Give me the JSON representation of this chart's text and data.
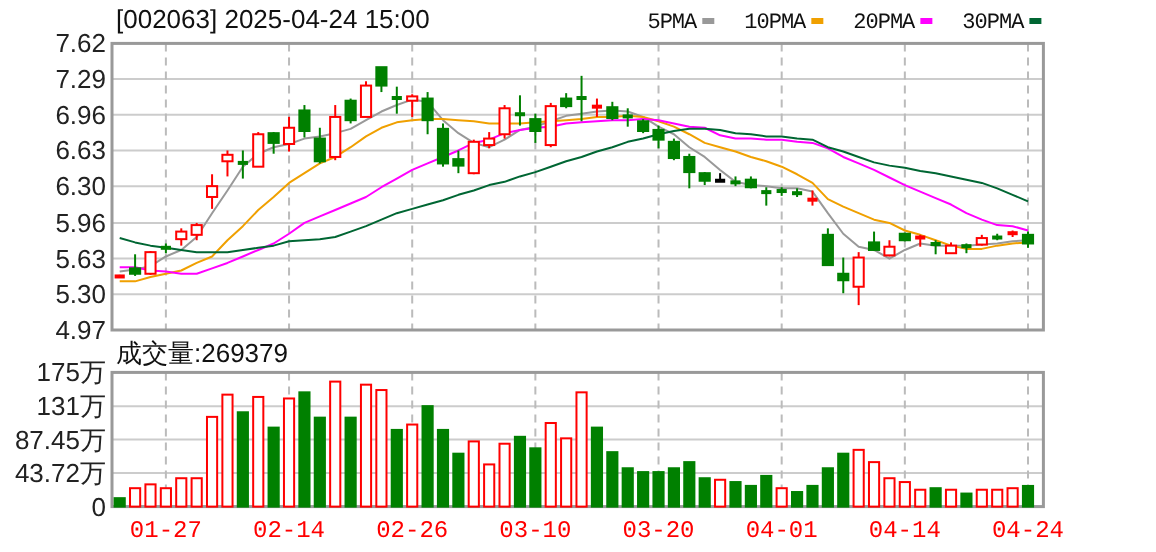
{
  "chart_data": [
    {
      "type": "candlestick",
      "title": "[002063] 2025-04-24 15:00",
      "categories": [
        null,
        null,
        null,
        null,
        null,
        null,
        null,
        null,
        null,
        null,
        null,
        null,
        null,
        null,
        null,
        null,
        null,
        null,
        null,
        null,
        null,
        null,
        null,
        null,
        null,
        null,
        null,
        null,
        null,
        null,
        null,
        null,
        null,
        null,
        null,
        null,
        null,
        null,
        null,
        null,
        null,
        null,
        null,
        null,
        null,
        null,
        null,
        null,
        null,
        null,
        null,
        null,
        null,
        null,
        null,
        null,
        null,
        null,
        null,
        null
      ],
      "ohlc": [
        [
          5.46,
          5.48,
          5.46,
          5.47
        ],
        [
          5.54,
          5.67,
          5.47,
          5.49
        ],
        [
          5.49,
          5.7,
          5.48,
          5.69
        ],
        [
          5.74,
          5.77,
          5.68,
          5.72
        ],
        [
          5.81,
          5.91,
          5.75,
          5.88
        ],
        [
          5.85,
          5.96,
          5.8,
          5.94
        ],
        [
          6.2,
          6.41,
          6.09,
          6.3
        ],
        [
          6.53,
          6.63,
          6.39,
          6.59
        ],
        [
          6.52,
          6.63,
          6.37,
          6.51
        ],
        [
          6.48,
          6.8,
          6.48,
          6.78
        ],
        [
          6.79,
          6.8,
          6.6,
          6.7
        ],
        [
          6.69,
          6.94,
          6.62,
          6.84
        ],
        [
          7.0,
          7.05,
          6.75,
          6.81
        ],
        [
          6.74,
          6.84,
          6.51,
          6.53
        ],
        [
          6.57,
          7.05,
          6.54,
          6.94
        ],
        [
          7.09,
          7.11,
          6.88,
          6.91
        ],
        [
          6.94,
          7.27,
          6.94,
          7.23
        ],
        [
          7.4,
          7.4,
          7.17,
          7.23
        ],
        [
          7.13,
          7.22,
          6.97,
          7.1
        ],
        [
          7.09,
          7.15,
          6.94,
          7.13
        ],
        [
          7.11,
          7.17,
          6.78,
          6.91
        ],
        [
          6.83,
          6.88,
          6.48,
          6.51
        ],
        [
          6.55,
          6.63,
          6.42,
          6.49
        ],
        [
          6.42,
          6.73,
          6.41,
          6.71
        ],
        [
          6.68,
          6.8,
          6.65,
          6.74
        ],
        [
          6.78,
          7.05,
          6.74,
          7.02
        ],
        [
          6.97,
          7.14,
          6.86,
          6.96
        ],
        [
          6.92,
          6.97,
          6.7,
          6.81
        ],
        [
          6.68,
          7.07,
          6.66,
          7.04
        ],
        [
          7.11,
          7.16,
          7.02,
          7.04
        ],
        [
          7.12,
          7.32,
          6.9,
          7.11
        ],
        [
          7.03,
          7.11,
          6.94,
          7.04
        ],
        [
          7.03,
          7.08,
          6.91,
          6.93
        ],
        [
          6.95,
          7.02,
          6.85,
          6.94
        ],
        [
          6.9,
          6.92,
          6.79,
          6.81
        ],
        [
          6.82,
          6.86,
          6.65,
          6.73
        ],
        [
          6.71,
          6.74,
          6.54,
          6.56
        ],
        [
          6.57,
          6.6,
          6.28,
          6.43
        ],
        [
          6.42,
          6.43,
          6.31,
          6.35
        ],
        [
          6.35,
          6.42,
          6.35,
          6.35
        ],
        [
          6.34,
          6.39,
          6.3,
          6.33
        ],
        [
          6.36,
          6.39,
          6.28,
          6.29
        ],
        [
          6.25,
          6.29,
          6.12,
          6.24
        ],
        [
          6.26,
          6.29,
          6.21,
          6.25
        ],
        [
          6.24,
          6.28,
          6.2,
          6.23
        ],
        [
          6.17,
          6.26,
          6.12,
          6.18
        ],
        [
          5.85,
          5.91,
          5.57,
          5.57
        ],
        [
          5.49,
          5.64,
          5.31,
          5.43
        ],
        [
          5.37,
          5.69,
          5.2,
          5.64
        ],
        [
          5.78,
          5.88,
          5.7,
          5.71
        ],
        [
          5.66,
          5.8,
          5.65,
          5.74
        ],
        [
          5.86,
          5.87,
          5.79,
          5.8
        ],
        [
          5.82,
          5.85,
          5.74,
          5.83
        ],
        [
          5.77,
          5.8,
          5.67,
          5.76
        ],
        [
          5.68,
          5.78,
          5.68,
          5.75
        ],
        [
          5.75,
          5.77,
          5.68,
          5.74
        ],
        [
          5.76,
          5.85,
          5.75,
          5.82
        ],
        [
          5.83,
          5.86,
          5.8,
          5.82
        ],
        [
          5.86,
          5.89,
          5.83,
          5.87
        ],
        [
          5.85,
          5.88,
          5.73,
          5.77
        ]
      ],
      "colors": [
        "#ff0000",
        "#008000",
        "#ff0000",
        "#008000",
        "#ff0000",
        "#ff0000",
        "#ff0000",
        "#ff0000",
        "#008000",
        "#ff0000",
        "#008000",
        "#ff0000",
        "#008000",
        "#008000",
        "#ff0000",
        "#008000",
        "#ff0000",
        "#008000",
        "#008000",
        "#ff0000",
        "#008000",
        "#008000",
        "#008000",
        "#ff0000",
        "#ff0000",
        "#ff0000",
        "#008000",
        "#008000",
        "#ff0000",
        "#008000",
        "#008000",
        "#ff0000",
        "#008000",
        "#008000",
        "#008000",
        "#008000",
        "#008000",
        "#008000",
        "#008000",
        "#000000",
        "#008000",
        "#008000",
        "#008000",
        "#008000",
        "#008000",
        "#ff0000",
        "#008000",
        "#008000",
        "#ff0000",
        "#008000",
        "#ff0000",
        "#008000",
        "#ff0000",
        "#008000",
        "#ff0000",
        "#008000",
        "#ff0000",
        "#008000",
        "#ff0000",
        "#008000"
      ],
      "series": [
        {
          "name": "5PMA",
          "type": "line",
          "color": "#999999",
          "values": [
            5.51,
            5.53,
            5.56,
            5.65,
            5.71,
            5.83,
            6.05,
            6.26,
            6.48,
            6.6,
            6.66,
            6.69,
            6.74,
            6.76,
            6.79,
            6.83,
            6.91,
            6.99,
            7.05,
            7.1,
            7.08,
            6.91,
            6.79,
            6.7,
            6.66,
            6.73,
            6.82,
            6.85,
            6.9,
            6.95,
            6.97,
            6.99,
            7.0,
            6.99,
            6.94,
            6.85,
            6.78,
            6.66,
            6.57,
            6.45,
            6.34,
            6.31,
            6.3,
            6.28,
            6.28,
            6.25,
            6.05,
            5.86,
            5.74,
            5.71,
            5.63,
            5.71,
            5.77,
            5.75,
            5.75,
            5.75,
            5.76,
            5.77,
            5.79,
            5.8
          ]
        },
        {
          "name": "10PMA",
          "type": "line",
          "color": "#f0a000",
          "values": [
            5.42,
            5.42,
            5.46,
            5.49,
            5.52,
            5.59,
            5.65,
            5.8,
            5.93,
            6.08,
            6.2,
            6.33,
            6.42,
            6.51,
            6.57,
            6.66,
            6.76,
            6.84,
            6.89,
            6.91,
            6.92,
            6.92,
            6.91,
            6.9,
            6.88,
            6.88,
            6.88,
            6.89,
            6.9,
            6.91,
            6.92,
            6.94,
            6.94,
            6.95,
            6.94,
            6.9,
            6.85,
            6.78,
            6.7,
            6.66,
            6.62,
            6.57,
            6.53,
            6.48,
            6.41,
            6.33,
            6.18,
            6.11,
            6.05,
            5.99,
            5.96,
            5.89,
            5.85,
            5.8,
            5.75,
            5.72,
            5.72,
            5.75,
            5.77,
            5.78
          ]
        },
        {
          "name": "20PMA",
          "type": "line",
          "color": "#ff00ff",
          "values": [
            5.55,
            5.55,
            5.52,
            5.51,
            5.49,
            5.49,
            5.54,
            5.59,
            5.65,
            5.71,
            5.77,
            5.86,
            5.96,
            6.02,
            6.08,
            6.14,
            6.2,
            6.29,
            6.37,
            6.45,
            6.51,
            6.57,
            6.63,
            6.7,
            6.73,
            6.79,
            6.82,
            6.84,
            6.85,
            6.88,
            6.89,
            6.9,
            6.91,
            6.91,
            6.92,
            6.91,
            6.88,
            6.85,
            6.84,
            6.77,
            6.74,
            6.74,
            6.73,
            6.73,
            6.71,
            6.7,
            6.65,
            6.57,
            6.51,
            6.45,
            6.38,
            6.31,
            6.25,
            6.19,
            6.13,
            6.05,
            5.99,
            5.94,
            5.93,
            5.89
          ]
        },
        {
          "name": "30PMA",
          "type": "line",
          "color": "#006633",
          "values": [
            5.82,
            5.78,
            5.75,
            5.73,
            5.71,
            5.69,
            5.69,
            5.69,
            5.71,
            5.73,
            5.75,
            5.79,
            5.8,
            5.81,
            5.83,
            5.88,
            5.93,
            5.99,
            6.05,
            6.09,
            6.13,
            6.17,
            6.22,
            6.26,
            6.31,
            6.34,
            6.39,
            6.43,
            6.48,
            6.53,
            6.57,
            6.62,
            6.66,
            6.71,
            6.74,
            6.78,
            6.81,
            6.83,
            6.83,
            6.82,
            6.79,
            6.78,
            6.76,
            6.76,
            6.74,
            6.73,
            6.66,
            6.62,
            6.57,
            6.52,
            6.49,
            6.47,
            6.44,
            6.42,
            6.39,
            6.36,
            6.33,
            6.28,
            6.22,
            6.16
          ]
        }
      ],
      "ylim": [
        4.97,
        7.62
      ],
      "yticks": [
        4.97,
        {
          "value": 5.3,
          "label": "5.30"
        },
        5.63,
        5.96,
        {
          "value": 6.3,
          "label": "6.30"
        },
        6.63,
        6.96,
        7.29,
        7.62
      ],
      "grid": true,
      "legend": "top right",
      "tick_labels": "y"
    },
    {
      "type": "bar",
      "title": "成交量:269379",
      "categories": [
        null,
        null,
        null,
        "01-27",
        null,
        null,
        null,
        null,
        null,
        null,
        null,
        "02-14",
        null,
        null,
        null,
        null,
        null,
        null,
        null,
        "02-26",
        null,
        null,
        null,
        null,
        null,
        null,
        null,
        "03-10",
        null,
        null,
        null,
        null,
        null,
        null,
        null,
        "03-20",
        null,
        null,
        null,
        null,
        null,
        null,
        null,
        "04-01",
        null,
        null,
        null,
        null,
        null,
        null,
        null,
        "04-14",
        null,
        null,
        null,
        null,
        null,
        null,
        null,
        "04-24"
      ],
      "values": [
        11,
        24,
        29,
        24,
        37,
        37,
        117,
        146,
        123,
        143,
        103,
        141,
        149,
        116,
        163,
        116,
        159,
        152,
        100,
        107,
        131,
        100,
        69,
        85,
        55,
        82,
        91,
        76,
        109,
        89,
        149,
        103,
        71,
        50,
        45,
        45,
        50,
        58,
        37,
        35,
        32,
        27,
        40,
        24,
        19,
        27,
        50,
        69,
        74,
        58,
        37,
        32,
        22,
        24,
        22,
        17,
        22,
        22,
        24,
        26.94
      ],
      "colors": [
        "#008000",
        "#ff0000",
        "#ff0000",
        "#ff0000",
        "#ff0000",
        "#ff0000",
        "#ff0000",
        "#ff0000",
        "#008000",
        "#ff0000",
        "#008000",
        "#ff0000",
        "#008000",
        "#008000",
        "#ff0000",
        "#008000",
        "#ff0000",
        "#ff0000",
        "#008000",
        "#ff0000",
        "#008000",
        "#008000",
        "#008000",
        "#ff0000",
        "#ff0000",
        "#ff0000",
        "#008000",
        "#008000",
        "#ff0000",
        "#ff0000",
        "#ff0000",
        "#008000",
        "#008000",
        "#008000",
        "#008000",
        "#008000",
        "#008000",
        "#008000",
        "#008000",
        "#ff0000",
        "#008000",
        "#008000",
        "#008000",
        "#ff0000",
        "#008000",
        "#008000",
        "#008000",
        "#008000",
        "#ff0000",
        "#ff0000",
        "#ff0000",
        "#ff0000",
        "#ff0000",
        "#008000",
        "#ff0000",
        "#008000",
        "#ff0000",
        "#ff0000",
        "#ff0000",
        "#008000"
      ],
      "ylim": [
        0,
        175
      ],
      "yticks": [
        0,
        {
          "value": 43.72,
          "label": "43.72万"
        },
        {
          "value": 87.45,
          "label": "87.45万"
        },
        {
          "value": 131,
          "label": "131万"
        },
        {
          "value": 175,
          "label": "175万"
        }
      ],
      "grid": true
    }
  ]
}
